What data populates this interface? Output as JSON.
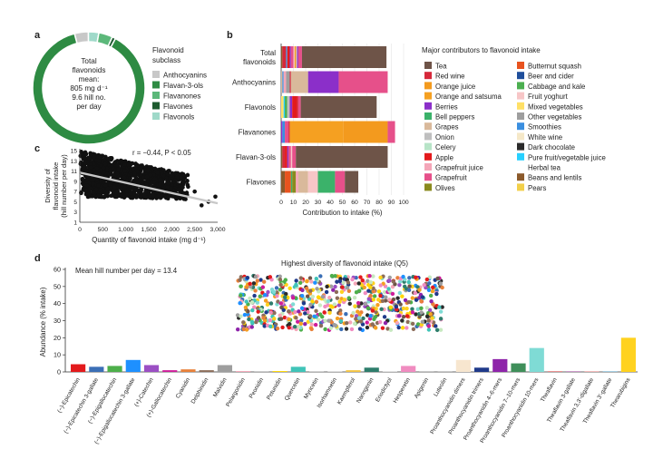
{
  "panels": {
    "a": "a",
    "b": "b",
    "c": "c",
    "d": "d"
  },
  "panel_a": {
    "center_text": [
      "Total",
      "flavonoids",
      "mean:",
      "805 mg d⁻¹",
      "9.6 hill no.",
      "per day"
    ],
    "legend_title": [
      "Flavonoid",
      "subclass"
    ]
  },
  "panel_b": {
    "legend_title": "Major contributors to flavonoid intake"
  },
  "panel_c": {
    "annotation": "r = −0.44, P < 0.05"
  },
  "panel_d": {
    "mean_text": "Mean hill number per day = 13.4",
    "inset_title": "Highest diversity of flavonoid intake (Q5)"
  },
  "colors": {
    "Anthocyanins": "#c8c8c8",
    "Flavan-3-ols": "#2e8b43",
    "Flavanones": "#5cb87a",
    "Flavones": "#1d5b2f",
    "Flavonols": "#9fd9c9",
    "Tea": "#6e5448",
    "Red wine": "#d6283a",
    "Orange juice": "#f39a1e",
    "Orange and satsuma": "#f5a021",
    "Berries": "#8b2fc9",
    "Bell peppers": "#3bb26a",
    "Grapes": "#d9b99b",
    "Onion": "#bfbfbf",
    "Celery": "#b7e4c7",
    "Apple": "#e31a1c",
    "Grapefruit juice": "#f4a6b8",
    "Grapefruit": "#e6508a",
    "Olives": "#8a8a1e",
    "Butternut squash": "#e8531f",
    "Beer and cider": "#1f4e9b",
    "Cabbage and kale": "#4caf50",
    "Fruit yoghurt": "#f7c6c7",
    "Mixed vegetables": "#ffe066",
    "Other vegetables": "#9e9e9e",
    "Smoothies": "#3b8fe0",
    "Dark chocolate": "#2b2b2b",
    "Pure fruit/vegetable juice": "#28d0ff",
    "Herbal tea": "#ffffff",
    "Beans and lentils": "#8b5a2b",
    "White wine": "#f5e8c8",
    "Pears": "#f2d04a",
    "accent": "#333333"
  },
  "chart_data": [
    {
      "type": "pie",
      "panel": "a",
      "title": "",
      "categories": [
        "Anthocyanins",
        "Flavan-3-ols",
        "Flavanones",
        "Flavones",
        "Flavonols"
      ],
      "values": [
        4,
        88,
        4,
        1,
        3
      ],
      "legend": "right"
    },
    {
      "type": "bar",
      "orientation": "horizontal",
      "stacked": true,
      "panel": "b",
      "categories": [
        "Total flavonoids",
        "Anthocyanins",
        "Flavonols",
        "Flavanones",
        "Flavan-3-ols",
        "Flavones"
      ],
      "xlabel": "Contribution to intake (%)",
      "xlim": [
        0,
        100
      ],
      "xticks": [
        0,
        10,
        20,
        30,
        40,
        50,
        60,
        70,
        80,
        90,
        100
      ],
      "legend": "right",
      "legend_entries": [
        "Tea",
        "Red wine",
        "Orange juice",
        "Orange and satsuma",
        "Berries",
        "Bell peppers",
        "Grapes",
        "Onion",
        "Celery",
        "Apple",
        "Grapefruit juice",
        "Grapefruit",
        "Olives",
        "Butternut squash",
        "Beer and cider",
        "Cabbage and kale",
        "Fruit yoghurt",
        "Mixed vegetables",
        "Other vegetables",
        "Smoothies",
        "White wine",
        "Dark chocolate",
        "Pure fruit/vegetable juice",
        "Herbal tea",
        "Beans and lentils",
        "Pears"
      ],
      "rows": [
        {
          "category": "Total flavonoids",
          "segments": [
            [
              "Beans and lentils",
              1
            ],
            [
              "Red wine",
              3
            ],
            [
              "Smoothies",
              1
            ],
            [
              "Apple",
              2
            ],
            [
              "Berries",
              1
            ],
            [
              "Grapefruit",
              2
            ],
            [
              "Fruit yoghurt",
              1
            ],
            [
              "Orange juice",
              1
            ],
            [
              "Grapes",
              1
            ],
            [
              "Berries",
              1
            ],
            [
              "Grapefruit",
              3
            ],
            [
              "Tea",
              69
            ]
          ]
        },
        {
          "category": "Anthocyanins",
          "segments": [
            [
              "Grapes",
              1
            ],
            [
              "Smoothies",
              1
            ],
            [
              "Grapefruit juice",
              2
            ],
            [
              "Other vegetables",
              3
            ],
            [
              "Red wine",
              1
            ],
            [
              "Grapes",
              14
            ],
            [
              "Berries",
              25
            ],
            [
              "Grapefruit",
              40
            ]
          ]
        },
        {
          "category": "Flavonols",
          "segments": [
            [
              "Mixed vegetables",
              2
            ],
            [
              "Pure fruit/vegetable juice",
              1
            ],
            [
              "Cabbage and kale",
              2
            ],
            [
              "Onion",
              2
            ],
            [
              "Berries",
              2
            ],
            [
              "Apple",
              4
            ],
            [
              "Red wine",
              1
            ],
            [
              "Grapefruit",
              2
            ],
            [
              "Tea",
              62
            ]
          ]
        },
        {
          "category": "Flavanones",
          "segments": [
            [
              "Berries",
              1
            ],
            [
              "Smoothies",
              2
            ],
            [
              "Grapefruit",
              3
            ],
            [
              "Red wine",
              1
            ],
            [
              "Orange and satsuma",
              44
            ],
            [
              "Orange juice",
              36
            ],
            [
              "Grapefruit",
              6
            ]
          ]
        },
        {
          "category": "Flavan-3-ols",
          "segments": [
            [
              "Beans and lentils",
              1
            ],
            [
              "Red wine",
              2
            ],
            [
              "Apple",
              2
            ],
            [
              "Berries",
              1
            ],
            [
              "Grapefruit",
              2
            ],
            [
              "Fruit yoghurt",
              1
            ],
            [
              "Grapefruit",
              3
            ],
            [
              "Tea",
              75
            ]
          ]
        },
        {
          "category": "Flavones",
          "segments": [
            [
              "Beans and lentils",
              3
            ],
            [
              "Butternut squash",
              5
            ],
            [
              "Bell peppers",
              1
            ],
            [
              "Olives",
              3
            ],
            [
              "Grapefruit juice",
              2
            ],
            [
              "Grapes",
              8
            ],
            [
              "Fruit yoghurt",
              8
            ],
            [
              "Bell peppers",
              14
            ],
            [
              "Grapefruit",
              8
            ],
            [
              "Tea",
              11
            ]
          ]
        }
      ]
    },
    {
      "type": "scatter",
      "panel": "c",
      "xlabel": "Quantity of flavonoid intake (mg d⁻¹)",
      "ylabel": "Diversity of flavonoid intake (hill number per day)",
      "xlim": [
        0,
        3000
      ],
      "ylim": [
        1,
        15
      ],
      "xticks": [
        0,
        500,
        1000,
        1500,
        2000,
        2500,
        3000
      ],
      "xtick_labels": [
        "0",
        "500",
        "1,000",
        "1,500",
        "2,000",
        "2,500",
        "3,000"
      ],
      "yticks": [
        1,
        3,
        5,
        7,
        9,
        11,
        13,
        15
      ],
      "trend_line": [
        [
          0,
          10.7
        ],
        [
          3000,
          4.7
        ]
      ]
    },
    {
      "type": "bar",
      "panel": "d",
      "ylabel": "Abundance (% intake)",
      "ylim": [
        0,
        60
      ],
      "yticks": [
        0,
        10,
        20,
        30,
        40,
        50,
        60
      ],
      "categories": [
        "(−)-Epicatechin",
        "(−)-Epicatechin 3-gallate",
        "(−)-Epigallocatechin",
        "(−)-Epigallocatechin 3-gallate",
        "(+)-Catechin",
        "(+)-Gallocatechin",
        "Cyanidin",
        "Delphinidin",
        "Malvidin",
        "Pelargonidin",
        "Peonidin",
        "Petunidin",
        "Quercetin",
        "Myricetin",
        "Isorhamnetin",
        "Kaempferol",
        "Naringenin",
        "Eriodictyol",
        "Hesperetin",
        "Apigenin",
        "Luteolin",
        "Proanthocyanidin dimers",
        "Proanthocyanidin trimers",
        "Proanthocyanidin 4–6-mers",
        "Proanthocyanidin 7–10-mers",
        "Proanthocyanidin 10-mers",
        "Theaflavin",
        "Theaflavin 3-gallate",
        "Theaflavin 3,3′-digallate",
        "Theaflavin 3′-gallate",
        "Thearubigins"
      ],
      "values": [
        4.5,
        3,
        3.5,
        7,
        4,
        1,
        1.5,
        1,
        4,
        0.5,
        0.5,
        0.5,
        3,
        0.2,
        0.2,
        1,
        2.5,
        0.3,
        3.5,
        0.1,
        0.1,
        7,
        2.5,
        7.5,
        5,
        14,
        0.5,
        0.5,
        0.5,
        0.5,
        20
      ],
      "bar_colors": [
        "#e31a1c",
        "#3b6fb6",
        "#4daf4a",
        "#1e90ff",
        "#9b4fc4",
        "#cf1d9a",
        "#e8813a",
        "#8c6d5a",
        "#9e9e9e",
        "#f4a6b8",
        "#c9c9c9",
        "#ffd700",
        "#40c4b8",
        "#bbbbbb",
        "#d9d9d9",
        "#f5c542",
        "#2e7d6b",
        "#cccccc",
        "#f08cc0",
        "#dddddd",
        "#e0e0e0",
        "#f7e6cf",
        "#1f3a8a",
        "#8e24aa",
        "#3f8f5a",
        "#7fdbd5",
        "#e88c8c",
        "#c994c7",
        "#f2b6b6",
        "#9ecae1",
        "#ffd21f"
      ]
    }
  ]
}
